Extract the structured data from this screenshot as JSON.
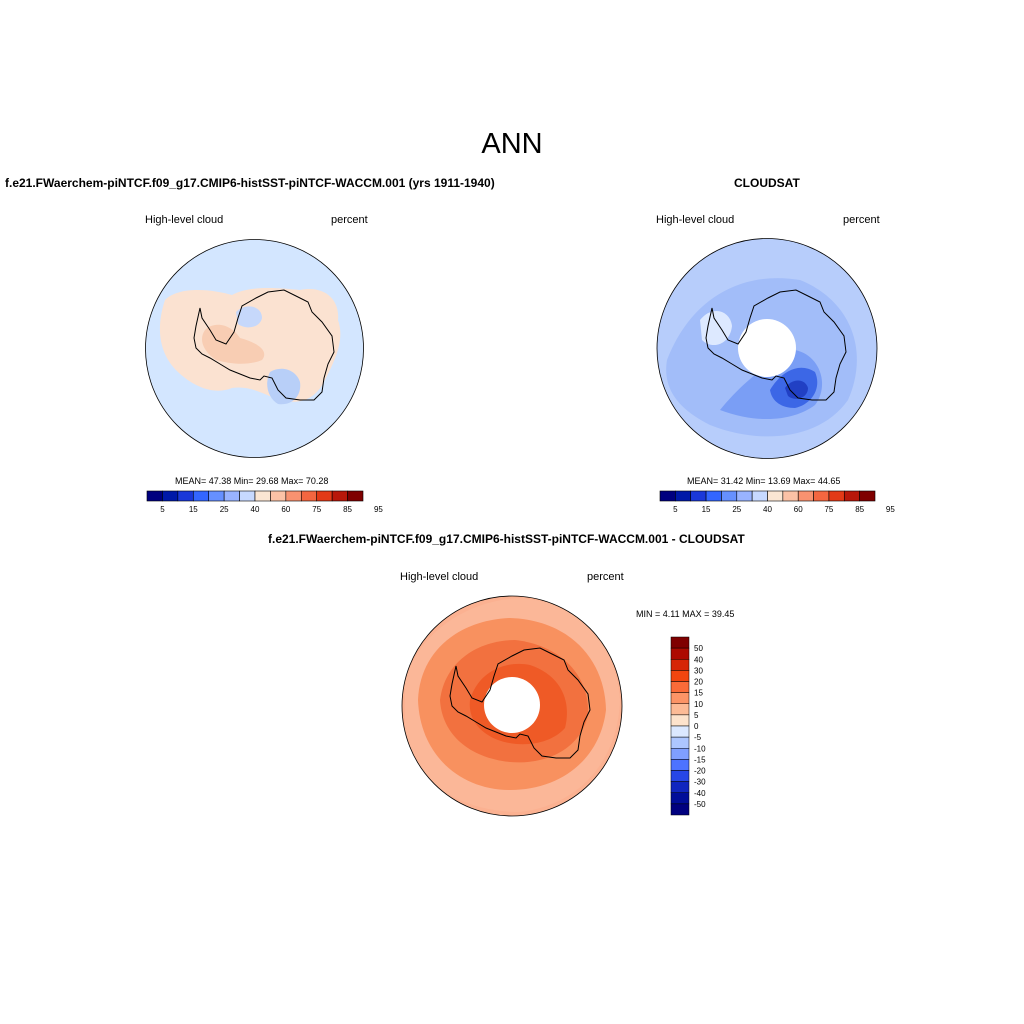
{
  "figure": {
    "title": "ANN"
  },
  "panels": [
    {
      "title": "f.e21.FWaerchem-piNTCF.f09_g17.CMIP6-histSST-piNTCF-WACCM.001 (yrs 1911-1940)",
      "variable": "High-level cloud",
      "units": "percent",
      "stats": "MEAN=  47.38  Min=  29.68  Max=  70.28"
    },
    {
      "title": "CLOUDSAT",
      "variable": "High-level cloud",
      "units": "percent",
      "stats": "MEAN=  31.42  Min=  13.69  Max=  44.65"
    },
    {
      "title": "f.e21.FWaerchem-piNTCF.f09_g17.CMIP6-histSST-piNTCF-WACCM.001 - CLOUDSAT",
      "variable": "High-level cloud",
      "units": "percent",
      "stats": "MIN =   4.11 MAX =  39.45"
    }
  ],
  "colorbars": {
    "field": {
      "colors": [
        "#00007f",
        "#0019a8",
        "#1a38d9",
        "#3366ff",
        "#6690ff",
        "#99b3ff",
        "#c7d9ff",
        "#fbe6d3",
        "#fcc2a6",
        "#f89270",
        "#f46640",
        "#e33a17",
        "#b8180a",
        "#7f0000"
      ],
      "tick_labels": [
        "5",
        "15",
        "25",
        "40",
        "60",
        "75",
        "85",
        "95"
      ]
    },
    "diff": {
      "colors": [
        "#7f0000",
        "#ad0a00",
        "#d62506",
        "#f2460f",
        "#fa6b38",
        "#fc9466",
        "#fdbb96",
        "#fde3cc",
        "#dbe8ff",
        "#adc6ff",
        "#7f9fff",
        "#4d73ff",
        "#2647e6",
        "#1026bf",
        "#000d99",
        "#00007f"
      ],
      "labels": [
        "50",
        "40",
        "30",
        "20",
        "15",
        "10",
        "5",
        "0",
        "-5",
        "-10",
        "-15",
        "-20",
        "-30",
        "-40",
        "-50"
      ]
    }
  }
}
